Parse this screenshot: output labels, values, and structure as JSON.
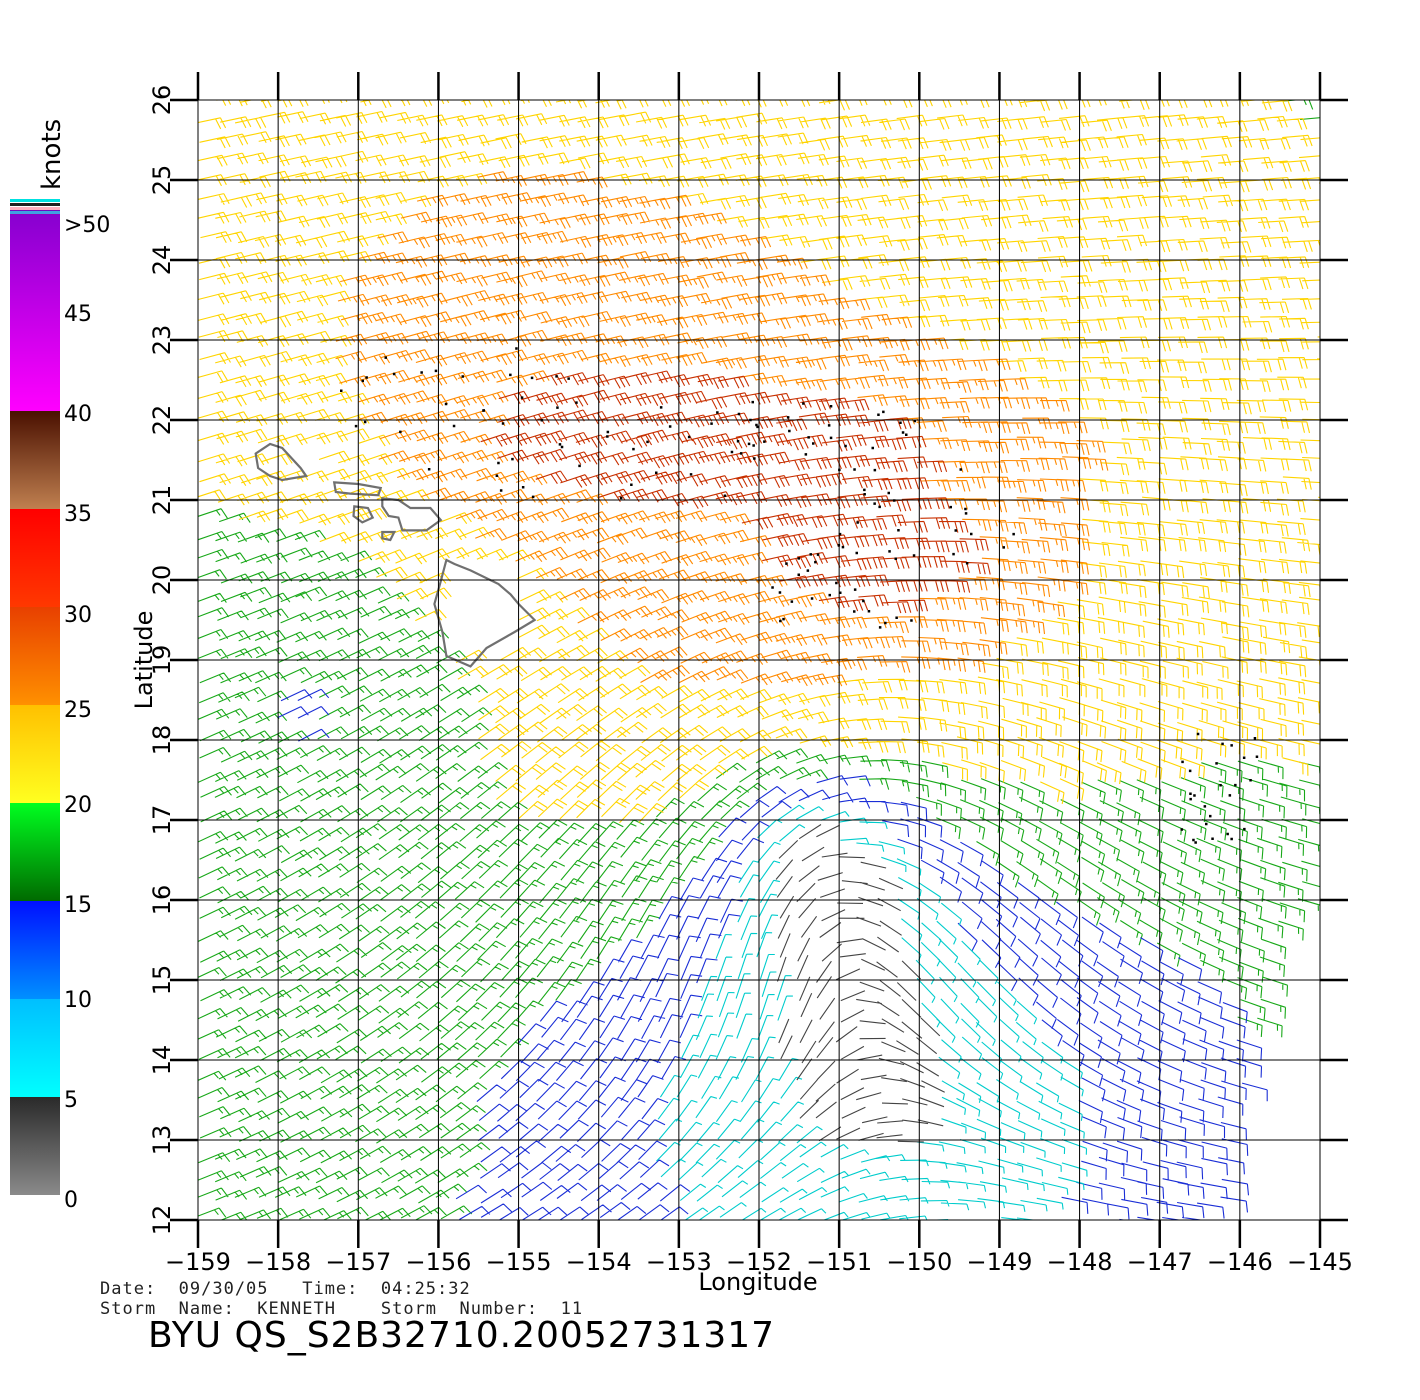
{
  "map": {
    "xlabel": "Longitude",
    "ylabel": "Latitude",
    "lon_range": [
      -159,
      -145
    ],
    "lat_range": [
      12,
      26
    ],
    "lon_ticks": [
      "−159",
      "−158",
      "−157",
      "−156",
      "−155",
      "−154",
      "−153",
      "−152",
      "−151",
      "−150",
      "−149",
      "−148",
      "−147",
      "−146",
      "−145"
    ],
    "lat_ticks": [
      "12",
      "13",
      "14",
      "15",
      "16",
      "17",
      "18",
      "19",
      "20",
      "21",
      "22",
      "23",
      "24",
      "25",
      "26"
    ],
    "grid": true,
    "storm_center_approx": {
      "lon": -151.2,
      "lat": 16.7
    },
    "colors": {
      "calm": "#444444",
      "light": "#00cccc",
      "moderate": "#1a2ed6",
      "fresh": "#18a818",
      "strong": "#ffd400",
      "gale": "#ff8a00",
      "heavy": "#c83000",
      "flag": "#000000",
      "coast": "#707070"
    }
  },
  "colorbar": {
    "unit": "knots",
    "labels": [
      ">50",
      "45",
      "40",
      "35",
      "30",
      "25",
      "20",
      "15",
      "10",
      "5",
      "0"
    ],
    "segments": [
      {
        "from": 0,
        "to": 5,
        "top": "#2a2a2a",
        "bottom": "#8a8a8a"
      },
      {
        "from": 5,
        "to": 10,
        "top": "#00bfff",
        "bottom": "#00ffff"
      },
      {
        "from": 10,
        "to": 15,
        "top": "#0010ff",
        "bottom": "#0090ff"
      },
      {
        "from": 15,
        "to": 20,
        "top": "#00ff20",
        "bottom": "#006a00"
      },
      {
        "from": 20,
        "to": 25,
        "top": "#ffc000",
        "bottom": "#ffff20"
      },
      {
        "from": 25,
        "to": 30,
        "top": "#e84000",
        "bottom": "#ff9000"
      },
      {
        "from": 30,
        "to": 35,
        "top": "#ff0000",
        "bottom": "#ff3800"
      },
      {
        "from": 35,
        "to": 40,
        "top": "#4a1000",
        "bottom": "#c08050"
      },
      {
        "from": 40,
        "to": 50,
        "top": "#8800d0",
        "bottom": "#ff00ff"
      },
      {
        "from": 50,
        "to": 55,
        "top": "#5a10c0",
        "bottom": "#9000c0"
      }
    ]
  },
  "footer": {
    "date_line": "Date:  09/30/05   Time:  04:25:32",
    "storm_line": "Storm  Name:  KENNETH    Storm  Number:  11",
    "product": "BYU  QS_S2B32710.20052731317"
  }
}
